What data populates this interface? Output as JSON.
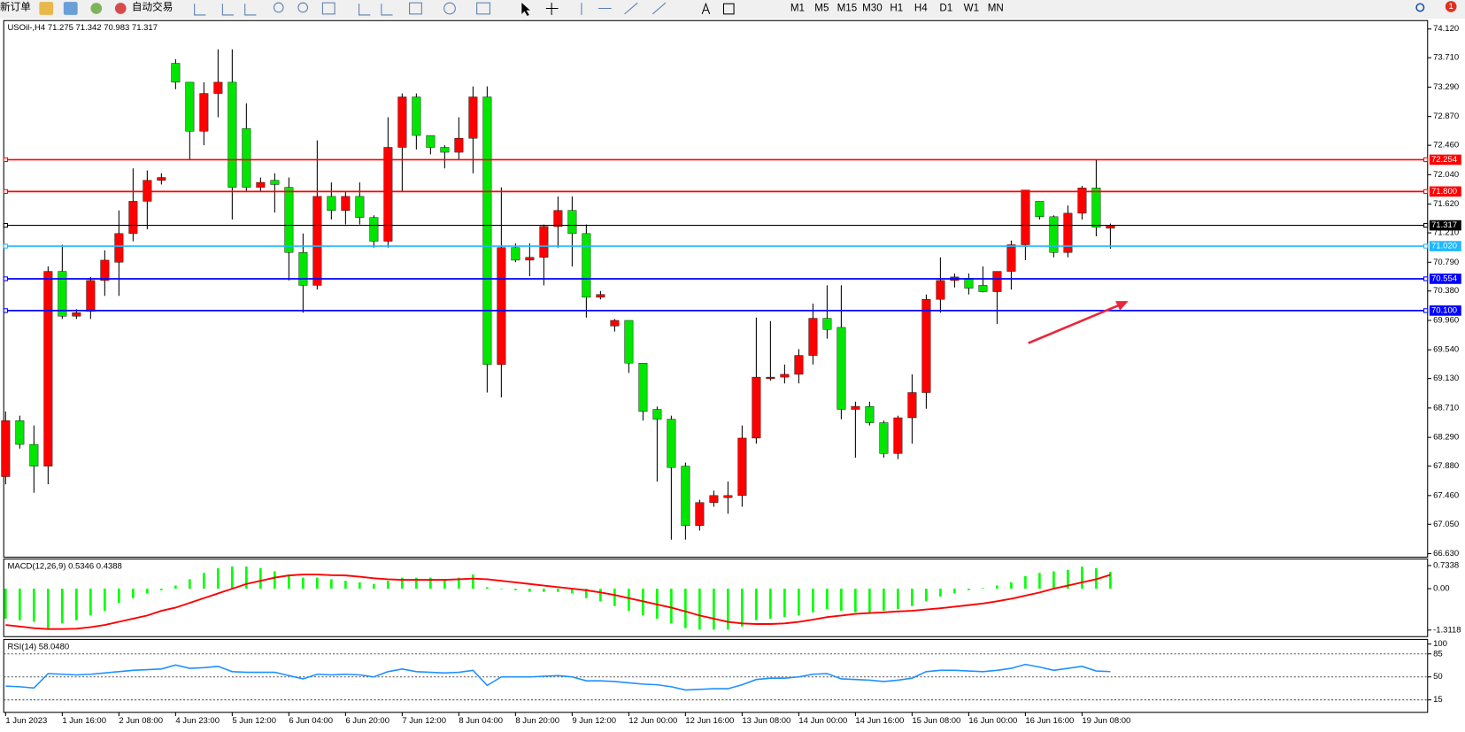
{
  "toolbar": {
    "new_order": "新订单",
    "auto_trading": "自动交易",
    "timeframes": [
      "M1",
      "M5",
      "M15",
      "M30",
      "H1",
      "H4",
      "D1",
      "W1",
      "MN"
    ],
    "badge": "1"
  },
  "chart_data": [
    {
      "type": "candlestick",
      "title": "USOil-,H4  71.275 71.342 70.983 71.317",
      "categories": [
        "1 Jun 2023",
        null,
        null,
        null,
        "1 Jun 16:00",
        null,
        null,
        null,
        "2 Jun 08:00",
        null,
        null,
        null,
        "4 Jun 23:00",
        null,
        null,
        null,
        "5 Jun 12:00",
        null,
        null,
        null,
        "6 Jun 04:00",
        null,
        null,
        null,
        "6 Jun 20:00",
        null,
        null,
        null,
        "7 Jun 12:00",
        null,
        null,
        null,
        "8 Jun 04:00",
        null,
        null,
        null,
        "8 Jun 20:00",
        null,
        null,
        null,
        "9 Jun 12:00",
        null,
        null,
        null,
        "12 Jun 00:00",
        null,
        null,
        null,
        "12 Jun 16:00",
        null,
        null,
        null,
        "13 Jun 08:00",
        null,
        null,
        null,
        "14 Jun 00:00",
        null,
        null,
        null,
        "14 Jun 16:00",
        null,
        null,
        null,
        "15 Jun 08:00",
        null,
        null,
        null,
        "16 Jun 00:00",
        null,
        null,
        null,
        "16 Jun 16:00",
        null,
        null,
        null,
        "19 Jun 08:00",
        null,
        null
      ],
      "open": [
        67.73,
        68.53,
        68.19,
        67.88,
        70.66,
        70.02,
        70.09,
        70.53,
        70.79,
        71.2,
        71.66,
        71.96,
        73.63,
        73.36,
        72.66,
        73.2,
        73.36,
        72.7,
        71.86,
        71.96,
        71.86,
        70.93,
        70.46,
        71.73,
        71.53,
        71.73,
        71.43,
        71.09,
        72.43,
        73.15,
        72.6,
        72.43,
        72.36,
        72.56,
        73.15,
        69.33,
        71.0,
        70.82,
        70.86,
        71.3,
        71.53,
        71.2,
        70.29,
        69.88,
        69.96,
        69.35,
        68.69,
        68.55,
        67.88,
        67.03,
        67.36,
        67.43,
        67.46,
        68.28,
        69.13,
        69.15,
        69.19,
        69.46,
        69.99,
        69.86,
        68.69,
        68.73,
        68.5,
        68.06,
        68.57,
        68.93,
        70.26,
        70.53,
        70.56,
        70.46,
        70.37,
        70.66,
        71.04,
        71.66,
        71.44,
        70.93,
        71.49,
        71.85,
        71.275
      ],
      "high": [
        68.66,
        68.6,
        68.46,
        70.73,
        71.04,
        70.12,
        70.58,
        70.96,
        71.53,
        72.13,
        72.1,
        72.06,
        73.69,
        73.36,
        73.36,
        73.83,
        73.83,
        73.06,
        72.0,
        72.06,
        72.0,
        71.2,
        72.53,
        71.93,
        71.8,
        71.93,
        71.46,
        72.86,
        73.2,
        73.2,
        72.6,
        72.46,
        72.86,
        73.3,
        73.3,
        71.86,
        71.06,
        71.06,
        71.33,
        71.73,
        71.73,
        71.33,
        70.38,
        69.98,
        69.96,
        69.35,
        68.73,
        68.6,
        67.93,
        67.4,
        67.53,
        67.66,
        68.46,
        70.0,
        69.95,
        69.33,
        69.55,
        70.2,
        70.46,
        70.46,
        68.8,
        68.8,
        68.53,
        68.6,
        69.19,
        70.33,
        70.86,
        70.63,
        70.63,
        70.73,
        70.66,
        71.1,
        71.82,
        71.66,
        71.46,
        71.6,
        71.88,
        72.25,
        71.342
      ],
      "low": [
        67.62,
        68.13,
        67.5,
        67.62,
        69.98,
        69.98,
        69.98,
        70.31,
        70.31,
        71.09,
        71.26,
        71.9,
        73.26,
        72.26,
        72.46,
        72.86,
        71.4,
        71.8,
        71.8,
        71.5,
        70.53,
        70.07,
        70.4,
        71.4,
        71.33,
        71.33,
        71.0,
        71.0,
        71.8,
        72.4,
        72.33,
        72.13,
        72.26,
        72.06,
        68.93,
        68.86,
        70.79,
        70.59,
        70.46,
        71.0,
        70.73,
        70.0,
        70.26,
        69.8,
        69.21,
        68.53,
        67.66,
        66.83,
        66.83,
        66.96,
        67.3,
        67.2,
        67.3,
        68.2,
        69.1,
        69.06,
        69.06,
        69.33,
        69.7,
        68.55,
        68.0,
        68.46,
        68.0,
        67.98,
        68.2,
        68.7,
        70.07,
        70.43,
        70.33,
        70.36,
        69.91,
        70.4,
        70.82,
        71.4,
        70.86,
        70.86,
        71.4,
        71.16,
        70.983
      ],
      "close": [
        68.53,
        68.19,
        67.88,
        70.66,
        70.02,
        70.07,
        70.53,
        70.82,
        71.2,
        71.66,
        71.96,
        72.0,
        73.36,
        72.66,
        73.2,
        73.36,
        71.86,
        71.86,
        71.93,
        71.9,
        70.93,
        70.46,
        71.73,
        71.53,
        71.73,
        71.43,
        71.09,
        72.43,
        73.15,
        72.6,
        72.43,
        72.36,
        72.56,
        73.15,
        69.33,
        71.0,
        70.82,
        70.86,
        71.3,
        71.53,
        71.2,
        70.29,
        70.33,
        69.96,
        69.35,
        68.66,
        68.55,
        67.86,
        67.03,
        67.36,
        67.46,
        67.46,
        68.28,
        69.15,
        69.15,
        69.19,
        69.46,
        69.99,
        69.83,
        68.69,
        68.73,
        68.5,
        68.06,
        68.57,
        68.93,
        70.26,
        70.53,
        70.58,
        70.42,
        70.37,
        70.66,
        71.04,
        71.82,
        71.44,
        70.93,
        71.49,
        71.85,
        71.29,
        71.317
      ],
      "colors": {
        "up": "#ff0000",
        "down": "#00e600",
        "wick": "#000000"
      },
      "ylim": [
        66.58,
        74.24
      ],
      "yticks": [
        {
          "value": 74.12,
          "label": "74.120"
        },
        {
          "value": 73.71,
          "label": "73.710"
        },
        {
          "value": 73.29,
          "label": "73.290"
        },
        {
          "value": 72.87,
          "label": "72.870"
        },
        {
          "value": 72.46,
          "label": "72.460"
        },
        {
          "value": 72.04,
          "label": "72.040"
        },
        {
          "value": 71.62,
          "label": "71.620"
        },
        {
          "value": 71.21,
          "label": "71.210"
        },
        {
          "value": 70.79,
          "label": "70.790"
        },
        {
          "value": 70.38,
          "label": "70.380"
        },
        {
          "value": 69.96,
          "label": "69.960"
        },
        {
          "value": 69.54,
          "label": "69.540"
        },
        {
          "value": 69.13,
          "label": "69.130"
        },
        {
          "value": 68.71,
          "label": "68.710"
        },
        {
          "value": 68.29,
          "label": "68.290"
        },
        {
          "value": 67.88,
          "label": "67.880"
        },
        {
          "value": 67.46,
          "label": "67.460"
        },
        {
          "value": 67.05,
          "label": "67.050"
        },
        {
          "value": 66.63,
          "label": "66.630"
        }
      ],
      "levels": [
        {
          "value": 72.254,
          "label": "72.254",
          "color": "#ff0000"
        },
        {
          "value": 71.8,
          "label": "71.800",
          "color": "#ff0000"
        },
        {
          "value": 71.317,
          "label": "71.317",
          "color": "#000000"
        },
        {
          "value": 71.02,
          "label": "71.020",
          "color": "#1fb8ff"
        },
        {
          "value": 70.554,
          "label": "70.554",
          "color": "#0000ff"
        },
        {
          "value": 70.1,
          "label": "70.100",
          "color": "#0000ff"
        }
      ]
    },
    {
      "type": "macd",
      "title": "MACD(12,26,9) 0.5346 0.4388",
      "ylim": [
        -1.52,
        0.94
      ],
      "yticks": [
        0.7338,
        {
          "value": 0,
          "label": "0.00"
        },
        -1.3118
      ],
      "series": [
        {
          "style": "bar",
          "color": "#00ff00",
          "values": [
            -0.95,
            -1.0,
            -1.05,
            -1.3,
            -1.1,
            -1.0,
            -0.85,
            -0.7,
            -0.45,
            -0.3,
            -0.15,
            -0.05,
            0.1,
            0.3,
            0.5,
            0.65,
            0.7,
            0.7,
            0.65,
            0.55,
            0.45,
            0.35,
            0.35,
            0.3,
            0.25,
            0.2,
            0.15,
            0.25,
            0.35,
            0.35,
            0.35,
            0.3,
            0.35,
            0.45,
            0.05,
            -0.02,
            -0.05,
            -0.1,
            -0.1,
            -0.1,
            -0.15,
            -0.3,
            -0.4,
            -0.55,
            -0.7,
            -0.85,
            -0.95,
            -1.1,
            -1.25,
            -1.3,
            -1.3,
            -1.3,
            -1.2,
            -1.0,
            -0.95,
            -0.9,
            -0.85,
            -0.75,
            -0.65,
            -0.7,
            -0.75,
            -0.75,
            -0.7,
            -0.65,
            -0.55,
            -0.4,
            -0.25,
            -0.15,
            -0.05,
            0.02,
            0.1,
            0.2,
            0.4,
            0.5,
            0.55,
            0.6,
            0.7,
            0.65,
            0.5346
          ]
        },
        {
          "style": "line",
          "color": "#ff0000",
          "values": [
            -1.15,
            -1.2,
            -1.25,
            -1.28,
            -1.28,
            -1.27,
            -1.22,
            -1.15,
            -1.05,
            -0.95,
            -0.85,
            -0.7,
            -0.6,
            -0.45,
            -0.3,
            -0.15,
            0.0,
            0.15,
            0.25,
            0.35,
            0.42,
            0.45,
            0.45,
            0.43,
            0.42,
            0.38,
            0.33,
            0.3,
            0.28,
            0.28,
            0.28,
            0.28,
            0.3,
            0.32,
            0.3,
            0.25,
            0.2,
            0.15,
            0.1,
            0.05,
            0.0,
            -0.05,
            -0.12,
            -0.2,
            -0.3,
            -0.4,
            -0.5,
            -0.6,
            -0.72,
            -0.85,
            -0.95,
            -1.05,
            -1.1,
            -1.12,
            -1.12,
            -1.1,
            -1.05,
            -0.98,
            -0.9,
            -0.85,
            -0.8,
            -0.77,
            -0.75,
            -0.72,
            -0.7,
            -0.66,
            -0.62,
            -0.57,
            -0.52,
            -0.47,
            -0.4,
            -0.32,
            -0.22,
            -0.12,
            0.0,
            0.1,
            0.2,
            0.3,
            0.4388
          ]
        }
      ]
    },
    {
      "type": "line",
      "title": "RSI(14) 58.0480",
      "ylim": [
        -4,
        107
      ],
      "yticks": [
        100,
        85,
        50,
        15
      ],
      "levels": [
        85,
        50,
        15
      ],
      "series": [
        {
          "style": "line",
          "color": "#1e90ff",
          "values": [
            36,
            35,
            33,
            55,
            54,
            53,
            54,
            56,
            58,
            60,
            61,
            62,
            68,
            63,
            64,
            66,
            58,
            57,
            57,
            57,
            52,
            47,
            54,
            53,
            54,
            53,
            50,
            58,
            62,
            58,
            57,
            56,
            57,
            60,
            37,
            50,
            50,
            50,
            51,
            52,
            50,
            44,
            44,
            43,
            41,
            39,
            38,
            35,
            30,
            31,
            32,
            32,
            38,
            46,
            48,
            48,
            50,
            54,
            55,
            47,
            46,
            45,
            43,
            45,
            48,
            58,
            60,
            60,
            59,
            58,
            60,
            63,
            69,
            65,
            60,
            63,
            66,
            59,
            58.048
          ]
        }
      ]
    }
  ]
}
